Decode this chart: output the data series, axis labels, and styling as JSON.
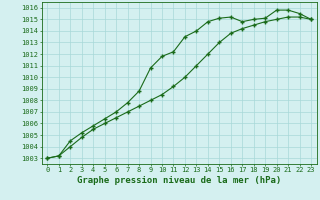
{
  "line1_x": [
    0,
    1,
    2,
    3,
    4,
    5,
    6,
    7,
    8,
    9,
    10,
    11,
    12,
    13,
    14,
    15,
    16,
    17,
    18,
    19,
    20,
    21,
    22,
    23
  ],
  "line1_y": [
    1003.0,
    1003.2,
    1004.5,
    1005.2,
    1005.8,
    1006.4,
    1007.0,
    1007.8,
    1008.8,
    1010.8,
    1011.8,
    1012.2,
    1013.5,
    1014.0,
    1014.8,
    1015.1,
    1015.2,
    1014.8,
    1015.0,
    1015.1,
    1015.8,
    1015.8,
    1015.5,
    1015.0
  ],
  "line2_x": [
    0,
    1,
    2,
    3,
    4,
    5,
    6,
    7,
    8,
    9,
    10,
    11,
    12,
    13,
    14,
    15,
    16,
    17,
    18,
    19,
    20,
    21,
    22,
    23
  ],
  "line2_y": [
    1003.0,
    1003.2,
    1004.0,
    1004.8,
    1005.5,
    1006.0,
    1006.5,
    1007.0,
    1007.5,
    1008.0,
    1008.5,
    1009.2,
    1010.0,
    1011.0,
    1012.0,
    1013.0,
    1013.8,
    1014.2,
    1014.5,
    1014.8,
    1015.0,
    1015.2,
    1015.2,
    1015.0
  ],
  "line_color": "#1a6b1a",
  "marker": "+",
  "bg_color": "#d4f0f0",
  "grid_color": "#a8d8d8",
  "xlabel": "Graphe pression niveau de la mer (hPa)",
  "ylim": [
    1002.5,
    1016.5
  ],
  "xlim": [
    -0.5,
    23.5
  ],
  "yticks": [
    1003,
    1004,
    1005,
    1006,
    1007,
    1008,
    1009,
    1010,
    1011,
    1012,
    1013,
    1014,
    1015,
    1016
  ],
  "xticks": [
    0,
    1,
    2,
    3,
    4,
    5,
    6,
    7,
    8,
    9,
    10,
    11,
    12,
    13,
    14,
    15,
    16,
    17,
    18,
    19,
    20,
    21,
    22,
    23
  ],
  "tick_fontsize": 5,
  "xlabel_fontsize": 6.5
}
